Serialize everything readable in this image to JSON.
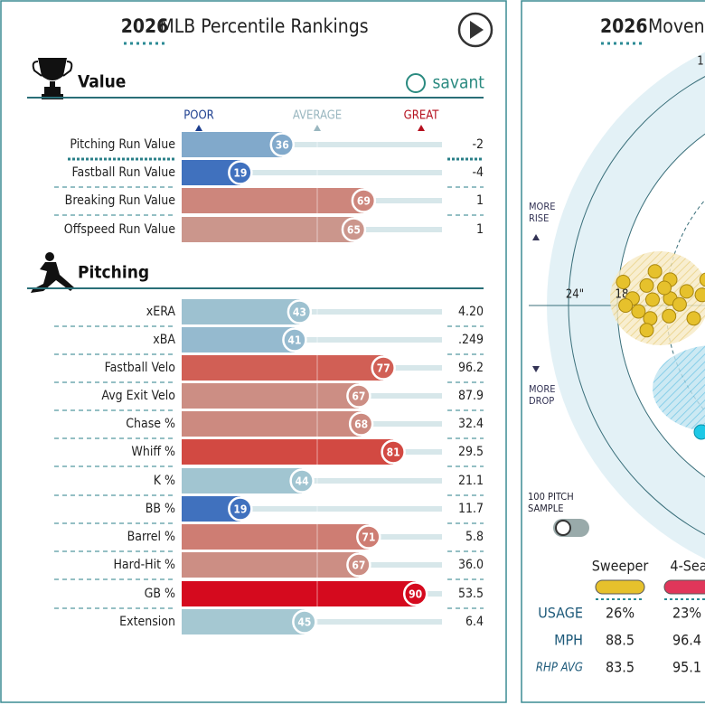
{
  "header": {
    "year": "2026",
    "title": "MLB Percentile Rankings"
  },
  "sections": [
    {
      "title": "Value",
      "logo": "savant",
      "scale": [
        "POOR",
        "AVERAGE",
        "GREAT"
      ],
      "rows": [
        {
          "label": "Pitching Run Value",
          "percentile": 36,
          "stat": "-2"
        },
        {
          "label": "Fastball Run Value",
          "percentile": 19,
          "stat": "-4"
        },
        {
          "label": "Breaking Run Value",
          "percentile": 69,
          "stat": "1"
        },
        {
          "label": "Offspeed Run Value",
          "percentile": 65,
          "stat": "1"
        }
      ]
    },
    {
      "title": "Pitching",
      "rows": [
        {
          "label": "xERA",
          "percentile": 43,
          "stat": "4.20"
        },
        {
          "label": "xBA",
          "percentile": 41,
          "stat": ".249"
        },
        {
          "label": "Fastball Velo",
          "percentile": 77,
          "stat": "96.2"
        },
        {
          "label": "Avg Exit Velo",
          "percentile": 67,
          "stat": "87.9"
        },
        {
          "label": "Chase %",
          "percentile": 68,
          "stat": "32.4"
        },
        {
          "label": "Whiff %",
          "percentile": 81,
          "stat": "29.5"
        },
        {
          "label": "K %",
          "percentile": 44,
          "stat": "21.1"
        },
        {
          "label": "BB %",
          "percentile": 19,
          "stat": "11.7"
        },
        {
          "label": "Barrel %",
          "percentile": 71,
          "stat": "5.8"
        },
        {
          "label": "Hard-Hit %",
          "percentile": 67,
          "stat": "36.0"
        },
        {
          "label": "GB %",
          "percentile": 90,
          "stat": "53.5"
        },
        {
          "label": "Extension",
          "percentile": 45,
          "stat": "6.4"
        }
      ]
    }
  ],
  "movement": {
    "year": "2026",
    "title": "Moven",
    "rise_label": [
      "MORE",
      "RISE"
    ],
    "drop_label": [
      "MORE",
      "DROP"
    ],
    "ring_labels": [
      "24\"",
      "18",
      "1"
    ],
    "sample_label": [
      "100 PITCH",
      "SAMPLE"
    ],
    "points": [
      {
        "x": -17.5,
        "y": 2.0
      },
      {
        "x": -16.7,
        "y": 0.6
      },
      {
        "x": -15.5,
        "y": 1.7
      },
      {
        "x": -15.0,
        "y": 0.5
      },
      {
        "x": -13.5,
        "y": 2.2
      },
      {
        "x": -13.5,
        "y": 0.6
      },
      {
        "x": -12.1,
        "y": 1.2
      },
      {
        "x": -10.8,
        "y": 0.9
      },
      {
        "x": -16.2,
        "y": -0.5
      },
      {
        "x": -15.2,
        "y": -1.1
      },
      {
        "x": -13.6,
        "y": -0.9
      },
      {
        "x": -12.7,
        "y": 0.1
      },
      {
        "x": -11.5,
        "y": -1.1
      },
      {
        "x": -15.5,
        "y": -2.1
      },
      {
        "x": -17.3,
        "y": 0.0
      },
      {
        "x": -14.8,
        "y": 2.9
      },
      {
        "x": -10.4,
        "y": 2.2
      },
      {
        "x": -14.0,
        "y": 1.5
      }
    ],
    "pitches": [
      "Sweeper",
      "4-Sea"
    ],
    "rows": [
      {
        "label": "USAGE",
        "values": [
          "26%",
          "23%"
        ]
      },
      {
        "label": "MPH",
        "values": [
          "88.5",
          "96.4"
        ]
      },
      {
        "label": "RHP AVG",
        "values": [
          "83.5",
          "95.1"
        ]
      }
    ]
  }
}
